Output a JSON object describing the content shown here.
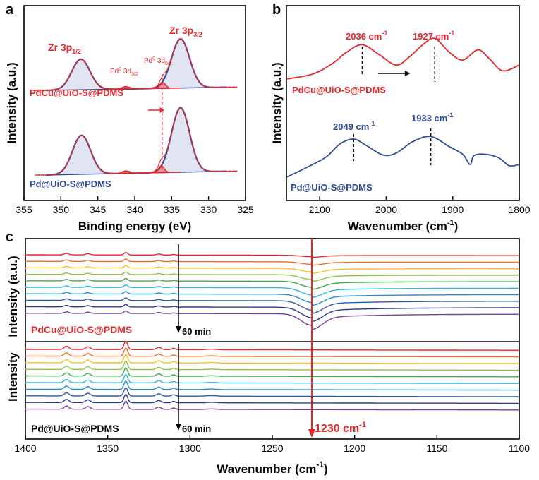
{
  "panels": {
    "a": {
      "letter": "a",
      "xlabel": "Binding energy (eV)",
      "ylabel": "Intensity (a.u.)",
      "xticks": [
        "355",
        "350",
        "345",
        "340",
        "335",
        "330",
        "325"
      ],
      "labels": {
        "zr_3p12": "Zr 3p",
        "zr_3p12_sub": "1/2",
        "zr_3p32": "Zr 3p",
        "zr_3p32_sub": "3/2",
        "pd_3d32_pre": "Pd",
        "pd_3d32_sup": "0",
        "pd_3d32": " 3d",
        "pd_3d32_sub": "3/2",
        "pd_3d52_pre": "Pd",
        "pd_3d52_sup": "0",
        "pd_3d52": " 3d",
        "pd_3d52_sub": "5/2",
        "sample_top": "PdCu@UiO-S@PDMS",
        "sample_bottom": "Pd@UiO-S@PDMS"
      }
    },
    "b": {
      "letter": "b",
      "xlabel": "Wavenumber (cm",
      "xlabel_sup": "-1",
      "xlabel_end": ")",
      "ylabel": "Intensity (a.u.)",
      "xticks": [
        "2100",
        "2000",
        "1900",
        "1800"
      ],
      "peaks_top": [
        {
          "value": "2036",
          "unit": "cm",
          "sup": "-1"
        },
        {
          "value": "1927",
          "unit": "cm",
          "sup": "-1"
        }
      ],
      "peaks_bottom": [
        {
          "value": "2049",
          "unit": "cm",
          "sup": "-1"
        },
        {
          "value": "1933",
          "unit": "cm",
          "sup": "-1"
        }
      ],
      "sample_top": "PdCu@UiO-S@PDMS",
      "sample_bottom": "Pd@UiO-S@PDMS"
    },
    "c": {
      "letter": "c",
      "xlabel": "Wavenumber (cm",
      "xlabel_sup": "-1",
      "xlabel_end": ")",
      "ylabel_top": "Intensity (a.u.)",
      "ylabel_bottom": "Intensity",
      "xticks": [
        "1400",
        "1350",
        "1300",
        "1250",
        "1200",
        "1150",
        "1100"
      ],
      "sample_top": "PdCu@UiO-S@PDMS",
      "sample_bottom": "Pd@UiO-S@PDMS",
      "time_top": "60 min",
      "time_bottom": "60 min",
      "marker": "1230 cm",
      "marker_sup": "-1"
    }
  },
  "colors": {
    "red": "#e8262a",
    "blue": "#2e4a9a",
    "ir_series": [
      "#e8262a",
      "#f26b2d",
      "#f5c21b",
      "#8cc63f",
      "#3fae49",
      "#29b6e3",
      "#1f8fd0",
      "#2e5aa8",
      "#2b3a8f",
      "#7b3f9e"
    ]
  },
  "chart_data": [
    {
      "type": "line",
      "panel": "a",
      "title": "",
      "xlabel": "Binding energy (eV)",
      "ylabel": "Intensity (a.u.)",
      "xlim": [
        355,
        325
      ],
      "series": [
        {
          "name": "PdCu@UiO-S@PDMS Zr 3p1/2 fit",
          "peak_x": 347.3,
          "fwhm": 2.2,
          "amp": 0.9
        },
        {
          "name": "PdCu@UiO-S@PDMS Zr 3p3/2 fit",
          "peak_x": 333.8,
          "fwhm": 2.2,
          "amp": 1.45
        },
        {
          "name": "PdCu@UiO-S@PDMS Pd0 3d3/2 fit",
          "peak_x": 341.2,
          "fwhm": 0.9,
          "amp": 0.07
        },
        {
          "name": "PdCu@UiO-S@PDMS Pd0 3d5/2 fit",
          "peak_x": 336.2,
          "fwhm": 0.7,
          "amp": 0.17
        },
        {
          "name": "Pd@UiO-S@PDMS Zr 3p1/2 fit",
          "peak_x": 347.2,
          "fwhm": 2.2,
          "amp": 1.15
        },
        {
          "name": "Pd@UiO-S@PDMS Zr 3p3/2 fit",
          "peak_x": 333.8,
          "fwhm": 2.2,
          "amp": 1.9
        },
        {
          "name": "Pd@UiO-S@PDMS Pd0 3d3/2 fit",
          "peak_x": 341.2,
          "fwhm": 0.9,
          "amp": 0.07
        },
        {
          "name": "Pd@UiO-S@PDMS Pd0 3d5/2 fit",
          "peak_x": 336.4,
          "fwhm": 0.7,
          "amp": 0.2
        }
      ],
      "annotations": [
        "Pd0 3d5/2 shift marker at 336.3 eV"
      ]
    },
    {
      "type": "line",
      "panel": "b",
      "xlabel": "Wavenumber (cm-1)",
      "ylabel": "Intensity (a.u.)",
      "xlim": [
        2150,
        1800
      ],
      "series": [
        {
          "name": "PdCu@UiO-S@PDMS",
          "x": [
            2150,
            2110,
            2080,
            2060,
            2036,
            2010,
            1985,
            1965,
            1945,
            1927,
            1905,
            1885,
            1862,
            1845,
            1825,
            1800
          ],
          "y": [
            0.2,
            0.28,
            0.45,
            0.62,
            0.74,
            0.58,
            0.42,
            0.55,
            0.74,
            0.84,
            0.62,
            0.5,
            0.66,
            0.52,
            0.33,
            0.42
          ]
        },
        {
          "name": "Pd@UiO-S@PDMS",
          "x": [
            2150,
            2120,
            2090,
            2070,
            2049,
            2030,
            2005,
            1985,
            1960,
            1933,
            1905,
            1885,
            1874,
            1868,
            1850,
            1830,
            1815,
            1800
          ],
          "y": [
            0.1,
            0.25,
            0.42,
            0.62,
            0.7,
            0.6,
            0.45,
            0.48,
            0.66,
            0.74,
            0.58,
            0.46,
            0.3,
            0.44,
            0.46,
            0.4,
            0.28,
            0.3
          ]
        }
      ],
      "peak_markers": [
        2036,
        1927,
        2049,
        1933
      ]
    },
    {
      "type": "line",
      "panel": "c",
      "xlabel": "Wavenumber (cm-1)",
      "ylabel": "Intensity (a.u.)",
      "xlim": [
        1400,
        1100
      ],
      "series_count_per_sample": 10,
      "samples": [
        "PdCu@UiO-S@PDMS",
        "Pd@UiO-S@PDMS"
      ],
      "features": [
        1375,
        1362,
        1339,
        1319,
        1230
      ],
      "marker_x": 1230,
      "time_arrow": "60 min"
    }
  ]
}
